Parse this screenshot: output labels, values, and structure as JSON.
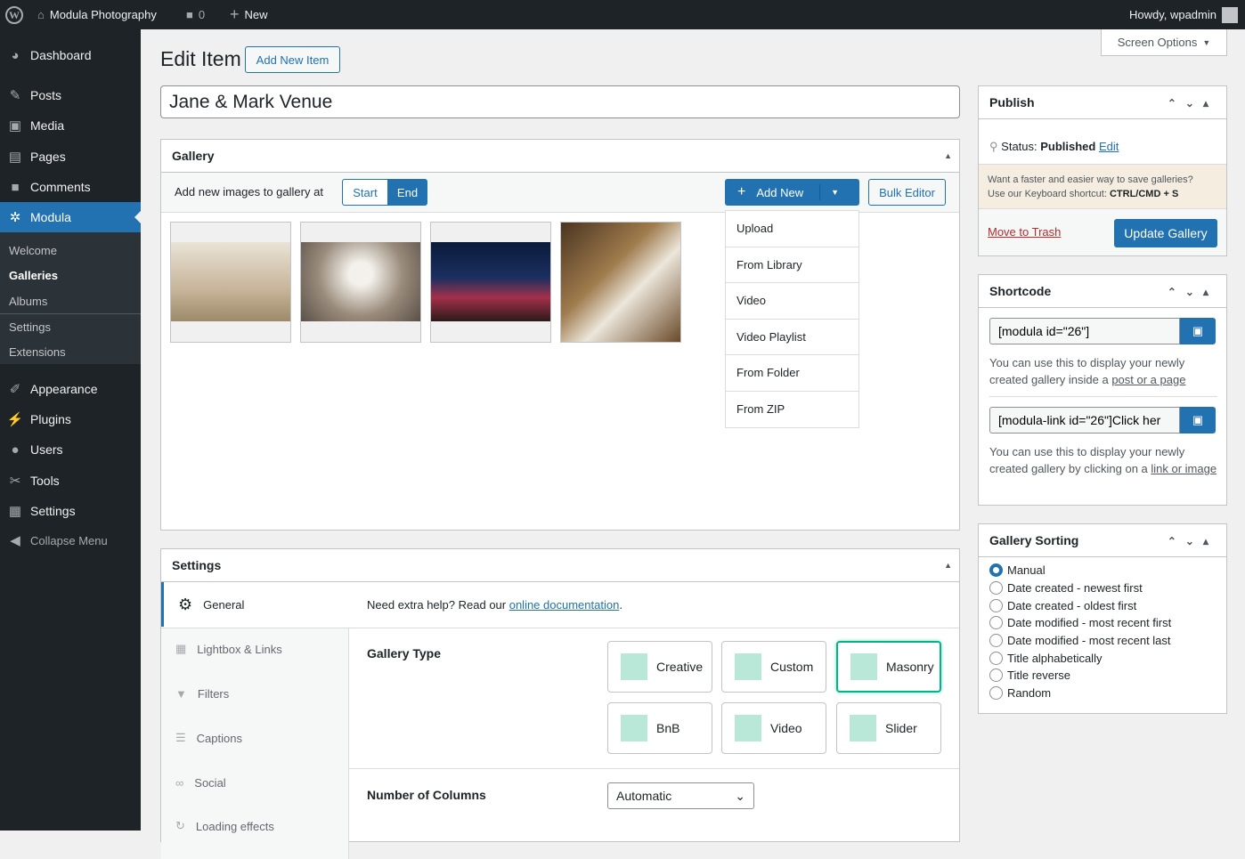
{
  "adminbar": {
    "site": "Modula Photography",
    "comments": "0",
    "new": "New",
    "howdy": "Howdy, wpadmin"
  },
  "sidebar": {
    "items": [
      {
        "label": "Dashboard",
        "icon": "dashboard-icon"
      },
      {
        "label": "Posts",
        "icon": "pin-icon"
      },
      {
        "label": "Media",
        "icon": "media-icon"
      },
      {
        "label": "Pages",
        "icon": "pages-icon"
      },
      {
        "label": "Comments",
        "icon": "comment-icon"
      },
      {
        "label": "Modula",
        "icon": "modula-icon"
      },
      {
        "label": "Appearance",
        "icon": "brush-icon"
      },
      {
        "label": "Plugins",
        "icon": "plugin-icon"
      },
      {
        "label": "Users",
        "icon": "user-icon"
      },
      {
        "label": "Tools",
        "icon": "wrench-icon"
      },
      {
        "label": "Settings",
        "icon": "settings-icon"
      }
    ],
    "submenu": [
      "Welcome",
      "Galleries",
      "Albums",
      "Settings",
      "Extensions"
    ],
    "collapse": "Collapse Menu"
  },
  "header": {
    "title": "Edit Item",
    "add_new": "Add New Item",
    "screen_options": "Screen Options",
    "item_title": "Jane & Mark Venue"
  },
  "gallery": {
    "title": "Gallery",
    "add_at": "Add new images to gallery at",
    "start": "Start",
    "end": "End",
    "add_new": "Add New",
    "bulk": "Bulk Editor",
    "menu": [
      "Upload",
      "From Library",
      "Video",
      "Video Playlist",
      "From Folder",
      "From ZIP"
    ]
  },
  "settings": {
    "title": "Settings",
    "tabs": [
      "General",
      "Lightbox & Links",
      "Filters",
      "Captions",
      "Social",
      "Loading effects"
    ],
    "help": "Need extra help? Read our ",
    "help_link": "online documentation",
    "gallery_type": "Gallery Type",
    "types": [
      "Creative",
      "Custom",
      "Masonry",
      "BnB",
      "Video",
      "Slider"
    ],
    "selected_type": "Masonry",
    "columns_label": "Number of Columns",
    "columns_value": "Automatic"
  },
  "publish": {
    "title": "Publish",
    "status_label": "Status: ",
    "status": "Published",
    "edit": "Edit",
    "tip1": "Want a faster and easier way to save galleries?",
    "tip2": "Use our Keyboard shortcut: ",
    "tip_key": "CTRL/CMD + S",
    "trash": "Move to Trash",
    "update": "Update Gallery"
  },
  "shortcode": {
    "title": "Shortcode",
    "code1": "[modula id=\"26\"]",
    "desc1": "You can use this to display your newly created gallery inside a ",
    "link1": "post or a page",
    "code2": "[modula-link id=\"26\"]Click her",
    "desc2": "You can use this to display your newly created gallery by clicking on a ",
    "link2": "link or image"
  },
  "sorting": {
    "title": "Gallery Sorting",
    "options": [
      "Manual",
      "Date created - newest first",
      "Date created - oldest first",
      "Date modified - most recent first",
      "Date modified - most recent last",
      "Title alphabetically",
      "Title reverse",
      "Random"
    ],
    "selected": "Manual"
  },
  "colors": {
    "accent": "#2271b1",
    "modula_green": "#00b48a",
    "admin_dark": "#1d2327"
  }
}
